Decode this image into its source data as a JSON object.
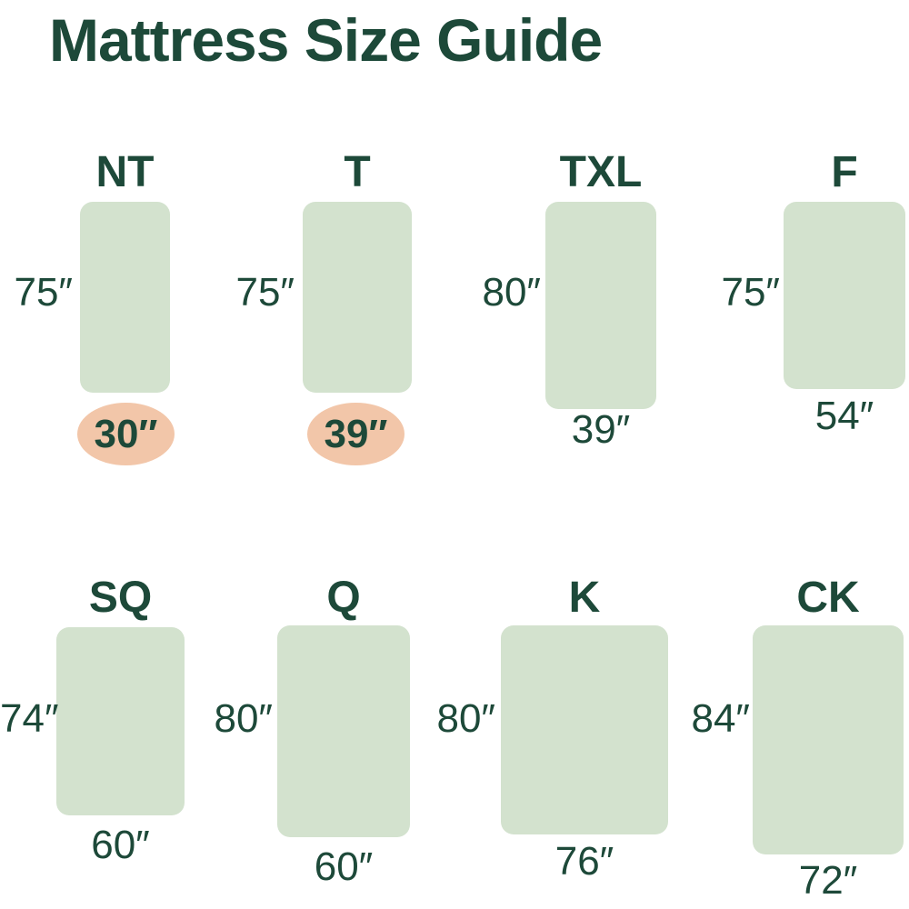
{
  "title": "Mattress Size Guide",
  "colors": {
    "text_green": "#1d4939",
    "mattress_green": "#d3e2ce",
    "highlight_peach": "#f2c6a9",
    "background": "#ffffff"
  },
  "mattresses": [
    {
      "code": "NT",
      "height": "75″",
      "width": "30″",
      "width_highlighted": true
    },
    {
      "code": "T",
      "height": "75″",
      "width": "39″",
      "width_highlighted": true
    },
    {
      "code": "TXL",
      "height": "80″",
      "width": "39″",
      "width_highlighted": false
    },
    {
      "code": "F",
      "height": "75″",
      "width": "54″",
      "width_highlighted": false
    },
    {
      "code": "SQ",
      "height": "74″",
      "width": "60″",
      "width_highlighted": false
    },
    {
      "code": "Q",
      "height": "80″",
      "width": "60″",
      "width_highlighted": false
    },
    {
      "code": "K",
      "height": "80″",
      "width": "76″",
      "width_highlighted": false
    },
    {
      "code": "CK",
      "height": "84″",
      "width": "72″",
      "width_highlighted": false
    }
  ]
}
